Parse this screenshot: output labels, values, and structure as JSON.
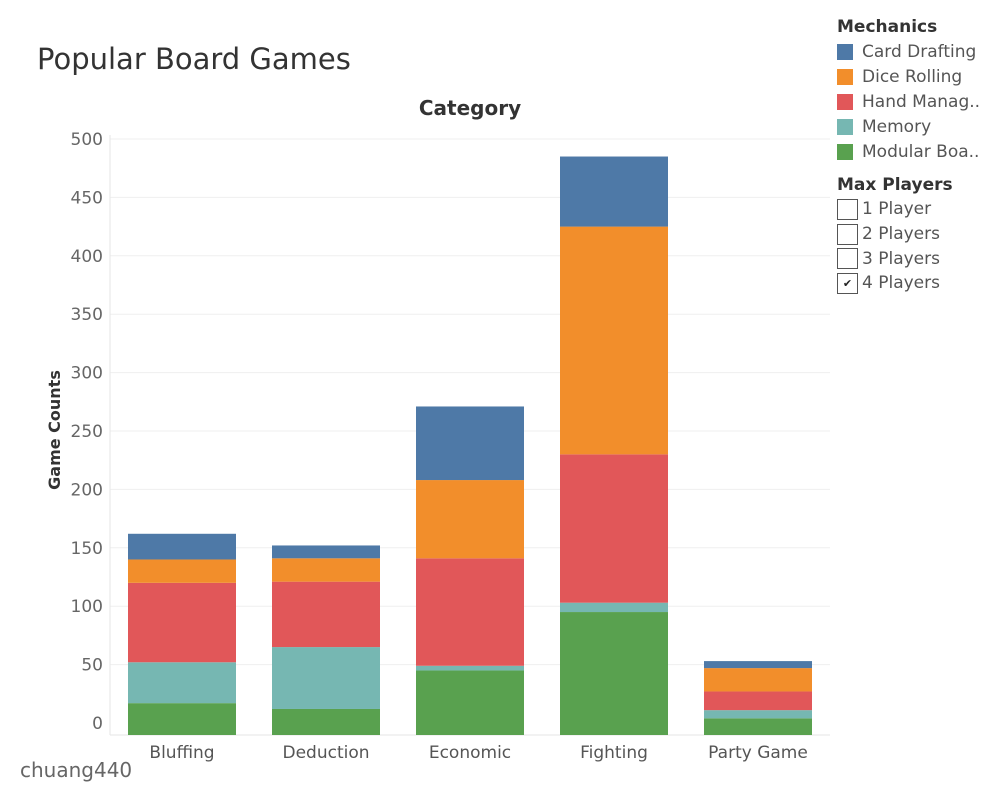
{
  "title": "Popular Board Games",
  "watermark": "chuang440",
  "chart_data": {
    "type": "bar",
    "stacked": true,
    "header": "Category",
    "ylabel": "Game Counts",
    "xlabel": "",
    "ylim": [
      0,
      500
    ],
    "yticks": [
      0,
      50,
      100,
      150,
      200,
      250,
      300,
      350,
      400,
      450,
      500
    ],
    "grid": true,
    "categories": [
      "Bluffing",
      "Deduction",
      "Economic",
      "Fighting",
      "Party Game"
    ],
    "series": [
      {
        "name": "Modular Board",
        "color": "#59a14f",
        "values": [
          17,
          12,
          45,
          95,
          4
        ]
      },
      {
        "name": "Memory",
        "color": "#76b7b2",
        "values": [
          35,
          53,
          4,
          8,
          7
        ]
      },
      {
        "name": "Hand Management",
        "color": "#e15759",
        "values": [
          68,
          56,
          92,
          127,
          16
        ]
      },
      {
        "name": "Dice Rolling",
        "color": "#f28e2b",
        "values": [
          20,
          20,
          67,
          195,
          20
        ]
      },
      {
        "name": "Card Drafting",
        "color": "#4e79a7",
        "values": [
          22,
          11,
          63,
          60,
          6
        ]
      }
    ]
  },
  "legend": {
    "title": "Mechanics",
    "items": [
      {
        "label": "Card Drafting",
        "color": "#4e79a7"
      },
      {
        "label": "Dice Rolling",
        "color": "#f28e2b"
      },
      {
        "label": "Hand Manag..",
        "color": "#e15759"
      },
      {
        "label": "Memory",
        "color": "#76b7b2"
      },
      {
        "label": "Modular Boa..",
        "color": "#59a14f"
      }
    ]
  },
  "filter": {
    "title": "Max Players",
    "options": [
      {
        "label": "1 Player",
        "checked": false
      },
      {
        "label": "2 Players",
        "checked": false
      },
      {
        "label": "3 Players",
        "checked": false
      },
      {
        "label": "4 Players",
        "checked": true
      }
    ]
  }
}
